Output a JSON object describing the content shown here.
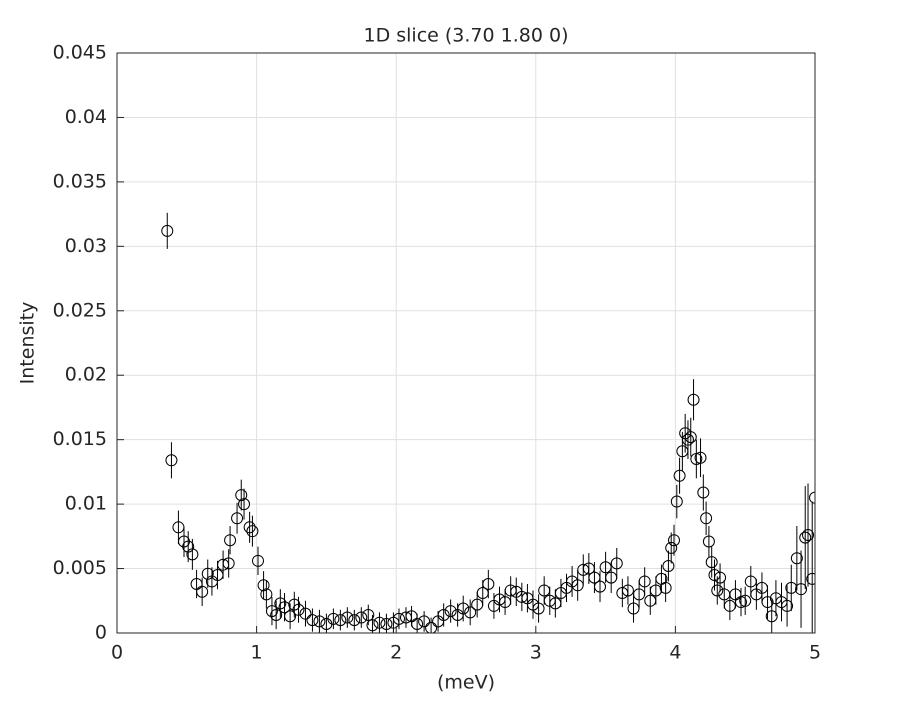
{
  "chart_data": {
    "type": "errorbar-scatter",
    "title": "1D slice (3.70 1.80 0)",
    "x_label": "(meV)",
    "y_label": "Intensity",
    "xlim": [
      0,
      5
    ],
    "ylim": [
      0,
      0.045
    ],
    "xticks": [
      0,
      1,
      2,
      3,
      4,
      5
    ],
    "yticks": [
      0,
      0.005,
      0.01,
      0.015,
      0.02,
      0.025,
      0.03,
      0.035,
      0.04,
      0.045
    ],
    "grid": true,
    "series": [
      {
        "color": "#000000",
        "x": [
          0.36,
          0.39,
          0.44,
          0.48,
          0.51,
          0.54,
          0.57,
          0.61,
          0.65,
          0.68,
          0.72,
          0.76,
          0.8,
          0.81,
          0.86,
          0.89,
          0.91,
          0.95,
          0.97,
          1.01,
          1.05,
          1.07,
          1.11,
          1.14,
          1.17,
          1.2,
          1.24,
          1.27,
          1.3,
          1.35,
          1.4,
          1.45,
          1.5,
          1.55,
          1.6,
          1.65,
          1.7,
          1.75,
          1.8,
          1.83,
          1.88,
          1.93,
          1.98,
          2.02,
          2.07,
          2.11,
          2.15,
          2.2,
          2.25,
          2.3,
          2.34,
          2.39,
          2.44,
          2.48,
          2.53,
          2.58,
          2.62,
          2.66,
          2.7,
          2.74,
          2.78,
          2.82,
          2.86,
          2.9,
          2.94,
          2.98,
          3.02,
          3.06,
          3.1,
          3.14,
          3.18,
          3.22,
          3.26,
          3.3,
          3.34,
          3.38,
          3.42,
          3.46,
          3.5,
          3.54,
          3.58,
          3.62,
          3.66,
          3.7,
          3.74,
          3.78,
          3.82,
          3.86,
          3.9,
          3.93,
          3.95,
          3.97,
          3.99,
          4.01,
          4.03,
          4.05,
          4.07,
          4.09,
          4.11,
          4.13,
          4.15,
          4.18,
          4.2,
          4.22,
          4.24,
          4.26,
          4.28,
          4.3,
          4.32,
          4.35,
          4.39,
          4.43,
          4.47,
          4.5,
          4.54,
          4.58,
          4.62,
          4.66,
          4.69,
          4.72,
          4.76,
          4.8,
          4.83,
          4.87,
          4.9,
          4.93,
          4.95,
          4.98,
          5.0
        ],
        "values": [
          0.0312,
          0.0134,
          0.0082,
          0.0071,
          0.0067,
          0.0061,
          0.0038,
          0.0032,
          0.0046,
          0.004,
          0.0045,
          0.0053,
          0.0054,
          0.0072,
          0.0089,
          0.0107,
          0.01,
          0.0082,
          0.0079,
          0.0056,
          0.0037,
          0.003,
          0.0017,
          0.0014,
          0.0023,
          0.002,
          0.0013,
          0.0022,
          0.0018,
          0.0015,
          0.001,
          0.0009,
          0.0007,
          0.0011,
          0.001,
          0.0012,
          0.001,
          0.0012,
          0.0014,
          0.0006,
          0.0008,
          0.0007,
          0.0008,
          0.0011,
          0.0012,
          0.0013,
          0.0007,
          0.0009,
          0.0004,
          0.0009,
          0.0014,
          0.0017,
          0.0014,
          0.0019,
          0.0016,
          0.0022,
          0.0031,
          0.0038,
          0.0021,
          0.0026,
          0.0024,
          0.0033,
          0.0032,
          0.0028,
          0.0027,
          0.0022,
          0.0019,
          0.0033,
          0.0025,
          0.0023,
          0.0031,
          0.0035,
          0.004,
          0.0037,
          0.0049,
          0.005,
          0.0043,
          0.0036,
          0.0051,
          0.0043,
          0.0054,
          0.0031,
          0.0033,
          0.0019,
          0.003,
          0.004,
          0.0025,
          0.0033,
          0.0042,
          0.0035,
          0.0052,
          0.0066,
          0.0072,
          0.0102,
          0.0122,
          0.0141,
          0.0155,
          0.015,
          0.0152,
          0.0181,
          0.0135,
          0.0136,
          0.0109,
          0.0089,
          0.0071,
          0.0055,
          0.0045,
          0.0033,
          0.0043,
          0.003,
          0.0021,
          0.003,
          0.0024,
          0.0025,
          0.004,
          0.003,
          0.0035,
          0.0024,
          0.0013,
          0.0027,
          0.0024,
          0.0021,
          0.0035,
          0.0058,
          0.0034,
          0.0074,
          0.0076,
          0.0042,
          0.0105
        ],
        "errors": [
          0.0014,
          0.0014,
          0.0013,
          0.0012,
          0.0012,
          0.0012,
          0.0011,
          0.0011,
          0.0011,
          0.0011,
          0.0011,
          0.0011,
          0.0011,
          0.0011,
          0.0012,
          0.0012,
          0.0012,
          0.0012,
          0.0012,
          0.0011,
          0.0011,
          0.0011,
          0.0011,
          0.0011,
          0.0011,
          0.0011,
          0.001,
          0.001,
          0.001,
          0.001,
          0.0009,
          0.0009,
          0.0008,
          0.0008,
          0.0008,
          0.0008,
          0.0008,
          0.0008,
          0.0008,
          0.0008,
          0.0008,
          0.0008,
          0.0008,
          0.0008,
          0.0008,
          0.0008,
          0.0008,
          0.0008,
          0.0008,
          0.0008,
          0.0009,
          0.0009,
          0.0009,
          0.001,
          0.001,
          0.001,
          0.001,
          0.0011,
          0.001,
          0.001,
          0.001,
          0.0011,
          0.0011,
          0.0011,
          0.0011,
          0.0011,
          0.0011,
          0.0011,
          0.0011,
          0.0011,
          0.0011,
          0.0011,
          0.0012,
          0.0012,
          0.0012,
          0.0012,
          0.0012,
          0.0012,
          0.0012,
          0.0012,
          0.0012,
          0.0011,
          0.0011,
          0.0011,
          0.0011,
          0.0011,
          0.0011,
          0.0011,
          0.0011,
          0.0011,
          0.0012,
          0.0012,
          0.0012,
          0.0013,
          0.0014,
          0.0015,
          0.0015,
          0.0015,
          0.0015,
          0.0016,
          0.0015,
          0.0015,
          0.0014,
          0.0013,
          0.0012,
          0.0012,
          0.0012,
          0.0011,
          0.0011,
          0.0011,
          0.0011,
          0.0011,
          0.0011,
          0.0011,
          0.0012,
          0.0012,
          0.0012,
          0.0013,
          0.0013,
          0.0014,
          0.0015,
          0.0016,
          0.0018,
          0.0025,
          0.003,
          0.004,
          0.004,
          0.006,
          0.0165
        ]
      }
    ]
  }
}
